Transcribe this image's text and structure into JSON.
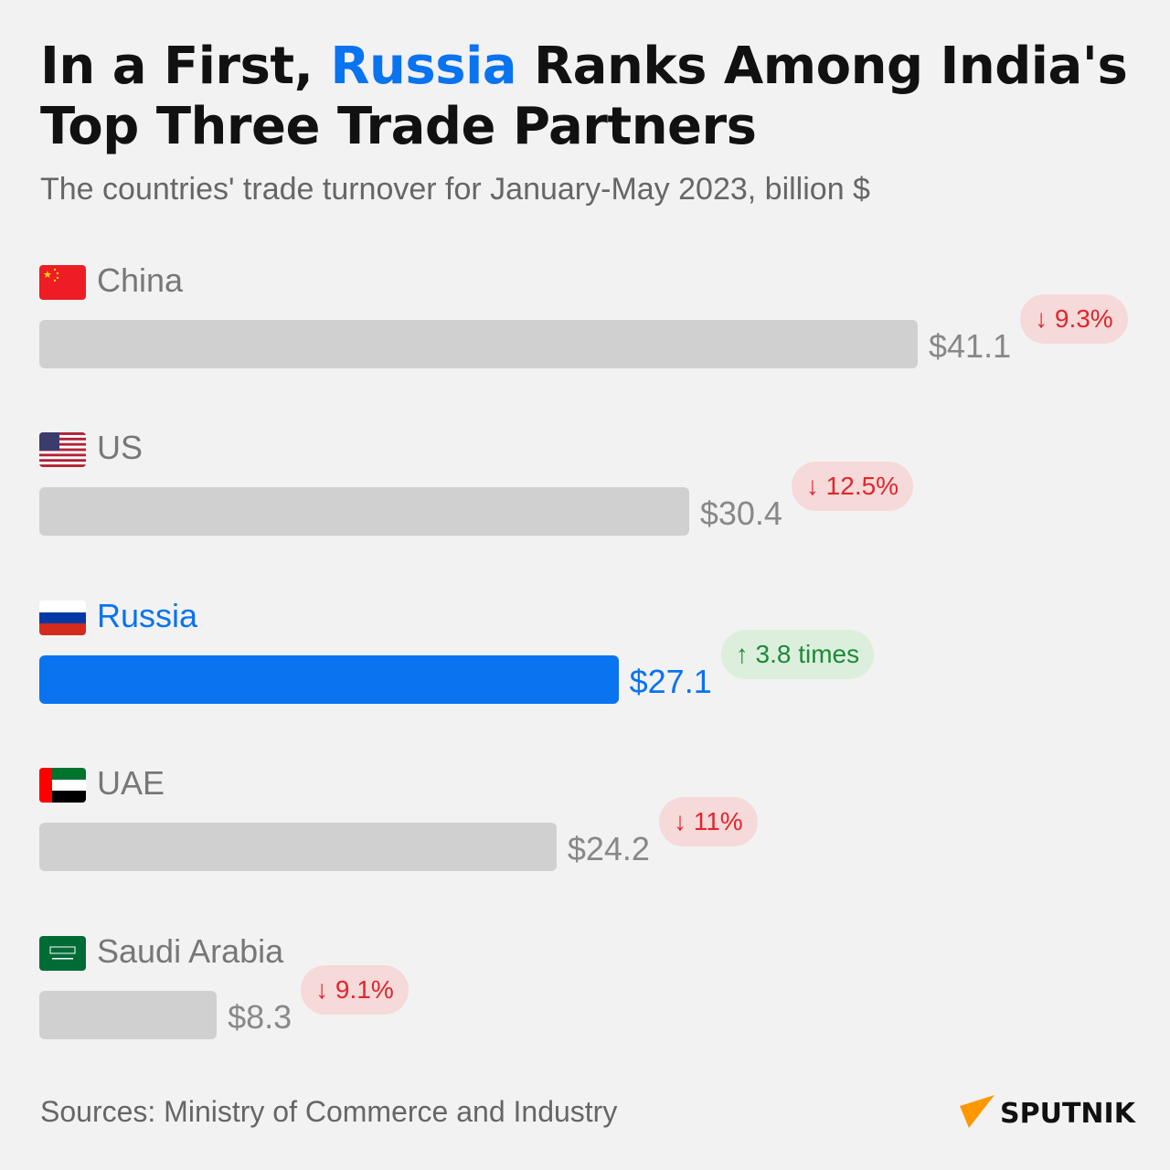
{
  "title": {
    "before": "In a First, ",
    "highlight": "Russia",
    "after": " Ranks Among India's Top Three Trade Partners"
  },
  "subtitle": "The countries' trade turnover for January-May 2023, billion $",
  "source": "Sources: Ministry of Commerce and Industry",
  "logo": "SPUTNIK",
  "colors": {
    "bar": "#d0d0d0",
    "highlight": "#0a73f0",
    "down": "#e0262b",
    "up": "#1d8a3a",
    "logo_accent": "#ff9800"
  },
  "chart_data": {
    "type": "bar",
    "orientation": "horizontal",
    "categories": [
      "China",
      "US",
      "Russia",
      "UAE",
      "Saudi Arabia"
    ],
    "values": [
      41.1,
      30.4,
      27.1,
      24.2,
      8.3
    ],
    "value_labels": [
      "$41.1",
      "$30.4",
      "$27.1",
      "$24.2",
      "$8.3"
    ],
    "changes": [
      {
        "text": "↓ 9.3%",
        "direction": "down"
      },
      {
        "text": "↓ 12.5%",
        "direction": "down"
      },
      {
        "text": "↑ 3.8 times",
        "direction": "up"
      },
      {
        "text": "↓ 11%",
        "direction": "down"
      },
      {
        "text": "↓ 9.1%",
        "direction": "down"
      }
    ],
    "flags": [
      "china-flag",
      "us-flag",
      "russia-flag",
      "uae-flag",
      "saudi-arabia-flag"
    ],
    "highlighted": "Russia",
    "xlim": [
      0,
      41.1
    ]
  }
}
